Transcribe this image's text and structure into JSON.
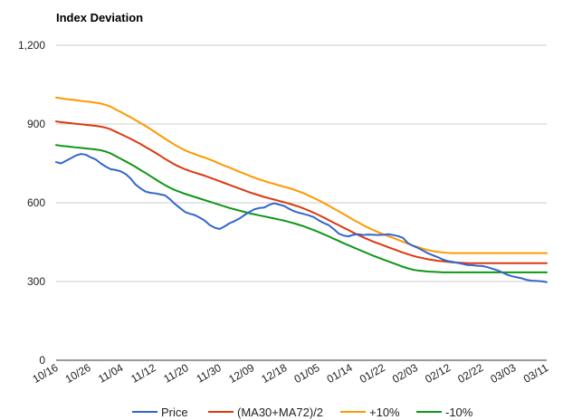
{
  "chart_data": {
    "type": "line",
    "title": "Index Deviation",
    "xlabel": "",
    "ylabel": "",
    "ylim": [
      0,
      1200
    ],
    "yticks": [
      0,
      300,
      600,
      900,
      1200
    ],
    "ytick_labels": [
      "0",
      "300",
      "600",
      "900",
      "1,200"
    ],
    "x_tick_labels": [
      "10/16",
      "10/26",
      "11/04",
      "11/12",
      "11/20",
      "11/30",
      "12/09",
      "12/18",
      "01/05",
      "01/14",
      "01/22",
      "02/03",
      "02/12",
      "02/22",
      "03/03",
      "03/11"
    ],
    "grid": true,
    "legend_position": "bottom",
    "num_points": 100,
    "series": [
      {
        "name": "Price",
        "color": "#3366cc",
        "values": [
          755,
          750,
          760,
          770,
          780,
          786,
          783,
          773,
          765,
          750,
          738,
          728,
          725,
          720,
          710,
          693,
          670,
          655,
          643,
          638,
          636,
          632,
          628,
          613,
          595,
          580,
          565,
          558,
          553,
          543,
          532,
          515,
          505,
          500,
          510,
          522,
          530,
          540,
          553,
          565,
          575,
          580,
          582,
          592,
          598,
          593,
          588,
          577,
          568,
          562,
          557,
          552,
          545,
          533,
          523,
          515,
          500,
          483,
          475,
          472,
          478,
          480,
          477,
          479,
          478,
          477,
          478,
          480,
          477,
          473,
          466,
          446,
          436,
          428,
          418,
          408,
          400,
          393,
          384,
          378,
          375,
          371,
          367,
          363,
          362,
          360,
          359,
          355,
          349,
          343,
          335,
          326,
          320,
          316,
          312,
          306,
          303,
          302,
          301,
          298
        ]
      },
      {
        "name": "(MA30+MA72)/2",
        "color": "#dc3912",
        "values": [
          910,
          907,
          905,
          903,
          901,
          899,
          897,
          895,
          893,
          890,
          886,
          880,
          871,
          862,
          853,
          844,
          834,
          824,
          813,
          802,
          791,
          779,
          767,
          756,
          745,
          736,
          728,
          721,
          715,
          709,
          703,
          696,
          689,
          682,
          675,
          668,
          661,
          654,
          647,
          640,
          634,
          628,
          622,
          617,
          612,
          607,
          602,
          597,
          591,
          585,
          578,
          570,
          562,
          553,
          544,
          534,
          524,
          515,
          505,
          496,
          486,
          477,
          468,
          460,
          452,
          445,
          438,
          431,
          424,
          417,
          410,
          404,
          398,
          393,
          389,
          385,
          382,
          379,
          377,
          375,
          373,
          372,
          371,
          370,
          370,
          370,
          370,
          370,
          370,
          370,
          370,
          370,
          370,
          370,
          370,
          370,
          370,
          370,
          370,
          370
        ]
      },
      {
        "name": "+10%",
        "color": "#ff9900",
        "values": [
          1001,
          998,
          995,
          993,
          991,
          988,
          986,
          984,
          981,
          978,
          973,
          966,
          956,
          946,
          936,
          926,
          915,
          904,
          893,
          881,
          869,
          856,
          844,
          832,
          820,
          810,
          800,
          792,
          785,
          778,
          772,
          765,
          757,
          749,
          741,
          734,
          726,
          718,
          711,
          703,
          696,
          689,
          683,
          677,
          672,
          666,
          661,
          656,
          650,
          643,
          636,
          627,
          618,
          609,
          599,
          589,
          578,
          568,
          557,
          546,
          535,
          525,
          514,
          505,
          496,
          488,
          480,
          473,
          466,
          459,
          451,
          444,
          437,
          431,
          425,
          420,
          416,
          413,
          411,
          409,
          408,
          408,
          408,
          408,
          408,
          408,
          408,
          408,
          408,
          408,
          408,
          408,
          408,
          408,
          408,
          408,
          408,
          408,
          408,
          408
        ]
      },
      {
        "name": "-10%",
        "color": "#109618",
        "values": [
          820,
          817,
          815,
          813,
          811,
          809,
          807,
          805,
          803,
          800,
          795,
          788,
          778,
          768,
          758,
          748,
          737,
          725,
          714,
          702,
          690,
          678,
          667,
          657,
          648,
          641,
          634,
          628,
          622,
          616,
          610,
          604,
          598,
          592,
          586,
          580,
          575,
          570,
          565,
          560,
          556,
          552,
          548,
          544,
          540,
          536,
          532,
          527,
          522,
          516,
          510,
          503,
          496,
          488,
          480,
          472,
          463,
          455,
          446,
          438,
          430,
          422,
          414,
          406,
          398,
          391,
          384,
          377,
          370,
          363,
          356,
          350,
          345,
          342,
          340,
          338,
          337,
          336,
          335,
          335,
          335,
          335,
          335,
          335,
          335,
          335,
          335,
          335,
          335,
          335,
          335,
          335,
          335,
          335,
          335,
          335,
          335,
          335,
          335,
          335
        ]
      }
    ]
  }
}
